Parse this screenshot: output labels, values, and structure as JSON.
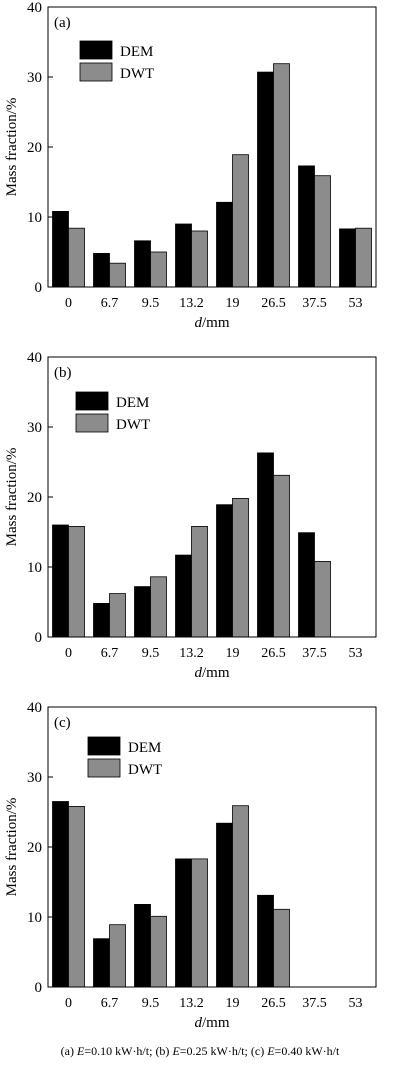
{
  "chart_data": [
    {
      "type": "bar",
      "panel_label": "(a)",
      "categories": [
        "0",
        "6.7",
        "9.5",
        "13.2",
        "19",
        "26.5",
        "37.5",
        "53"
      ],
      "series": [
        {
          "name": "DEM",
          "values": [
            10.8,
            4.8,
            6.6,
            9.0,
            12.1,
            30.7,
            17.3,
            8.3
          ]
        },
        {
          "name": "DWT",
          "values": [
            8.4,
            3.4,
            5.0,
            8.0,
            18.9,
            31.9,
            15.9,
            8.4
          ]
        }
      ],
      "xlabel_italic": "d",
      "xlabel_rest": "/mm",
      "ylabel": "Mass fraction/%",
      "ylim": [
        0,
        40
      ],
      "yticks": [
        "0",
        "10",
        "20",
        "30",
        "40"
      ],
      "legend_position": "top-left",
      "colors": {
        "DEM": "#000000",
        "DWT": "#8c8c8c"
      }
    },
    {
      "type": "bar",
      "panel_label": "(b)",
      "categories": [
        "0",
        "6.7",
        "9.5",
        "13.2",
        "19",
        "26.5",
        "37.5",
        "53"
      ],
      "series": [
        {
          "name": "DEM",
          "values": [
            16.0,
            4.8,
            7.2,
            11.7,
            18.9,
            26.3,
            14.9,
            0
          ]
        },
        {
          "name": "DWT",
          "values": [
            15.8,
            6.2,
            8.6,
            15.8,
            19.8,
            23.1,
            10.8,
            0
          ]
        }
      ],
      "xlabel_italic": "d",
      "xlabel_rest": "/mm",
      "ylabel": "Mass fraction/%",
      "ylim": [
        0,
        40
      ],
      "yticks": [
        "0",
        "10",
        "20",
        "30",
        "40"
      ],
      "legend_position": "top-left",
      "colors": {
        "DEM": "#000000",
        "DWT": "#8c8c8c"
      }
    },
    {
      "type": "bar",
      "panel_label": "(c)",
      "categories": [
        "0",
        "6.7",
        "9.5",
        "13.2",
        "19",
        "26.5",
        "37.5",
        "53"
      ],
      "series": [
        {
          "name": "DEM",
          "values": [
            26.5,
            6.9,
            11.8,
            18.3,
            23.4,
            13.1,
            0,
            0
          ]
        },
        {
          "name": "DWT",
          "values": [
            25.8,
            8.9,
            10.1,
            18.3,
            25.9,
            11.1,
            0,
            0
          ]
        }
      ],
      "xlabel_italic": "d",
      "xlabel_rest": "/mm",
      "ylabel": "Mass fraction/%",
      "ylim": [
        0,
        40
      ],
      "yticks": [
        "0",
        "10",
        "20",
        "30",
        "40"
      ],
      "legend_position": "top-left",
      "colors": {
        "DEM": "#000000",
        "DWT": "#8c8c8c"
      }
    }
  ],
  "caption": {
    "a_prefix": "(a) ",
    "a_var": "E",
    "a_value": "=0.10 kW·h/t; ",
    "b_prefix": "(b) ",
    "b_var": "E",
    "b_value": "=0.25 kW·h/t; ",
    "c_prefix": "(c) ",
    "c_var": "E",
    "c_value": "=0.40 kW·h/t"
  }
}
